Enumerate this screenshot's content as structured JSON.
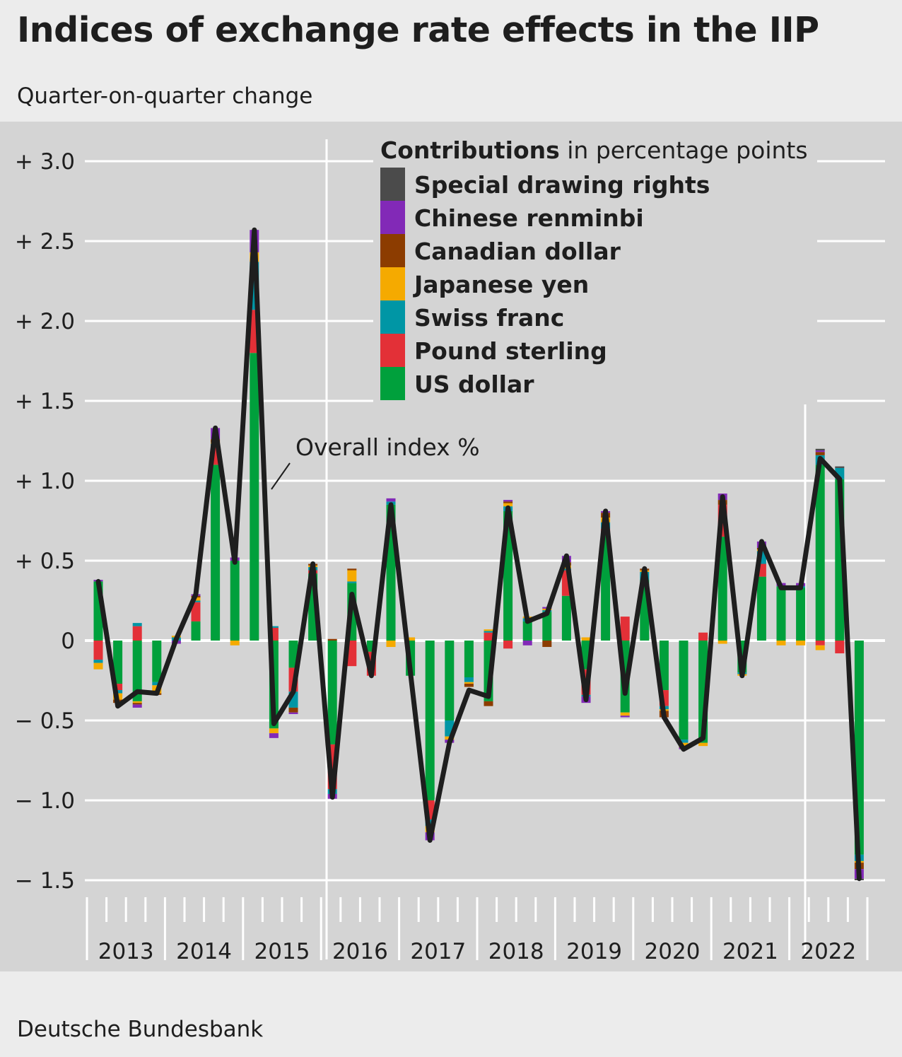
{
  "title": "Indices of exchange rate effects in the IIP",
  "subtitle": "Quarter-on-quarter change",
  "source": "Deutsche Bundesbank",
  "chart_data": {
    "type": "bar",
    "stacked": true,
    "overlay": "line",
    "legend_title_bold": "Contributions",
    "legend_title_rest": "in percentage points",
    "line_label": "Overall index %",
    "y_ticks": [
      3.0,
      2.5,
      2.0,
      1.5,
      1.0,
      0.5,
      0,
      -0.5,
      -1.0,
      -1.5
    ],
    "y_tick_labels": [
      "+ 3.0",
      "+ 2.5",
      "+ 2.0",
      "+ 1.5",
      "+ 1.0",
      "+ 0.5",
      "0",
      "− 0.5",
      "− 1.0",
      "− 1.5"
    ],
    "ylim": [
      -1.5,
      3.0
    ],
    "year_labels": [
      "2013",
      "2014",
      "2015",
      "2016",
      "2017",
      "2018",
      "2019",
      "2020",
      "2021",
      "2022"
    ],
    "quarters_per_year": 4,
    "series": [
      {
        "name": "US dollar",
        "color": "#00a03c",
        "values": [
          0.37,
          -0.27,
          -0.38,
          -0.26,
          0.0,
          0.12,
          1.1,
          0.5,
          1.8,
          -0.55,
          -0.17,
          0.42,
          -0.65,
          0.36,
          -0.07,
          0.85,
          -0.22,
          -1.0,
          -0.5,
          -0.23,
          -0.38,
          0.81,
          0.12,
          0.18,
          0.28,
          -0.18,
          0.66,
          -0.45,
          0.38,
          -0.31,
          -0.62,
          -0.64,
          0.65,
          -0.2,
          0.4,
          0.34,
          0.33,
          1.1,
          1.01,
          -1.34
        ]
      },
      {
        "name": "Pound sterling",
        "color": "#e33037",
        "values": [
          -0.12,
          -0.04,
          0.09,
          -0.0,
          0.0,
          0.12,
          0.12,
          0.0,
          0.27,
          0.08,
          -0.15,
          0.02,
          -0.28,
          -0.16,
          -0.15,
          0.0,
          0.0,
          -0.12,
          0.0,
          0.0,
          0.05,
          -0.05,
          0.0,
          0.0,
          0.16,
          -0.16,
          0.04,
          0.15,
          0.0,
          -0.1,
          0.0,
          0.05,
          0.2,
          0.0,
          0.08,
          0.0,
          0.0,
          -0.03,
          -0.08,
          0.0
        ]
      },
      {
        "name": "Swiss franc",
        "color": "#0096a5",
        "values": [
          -0.02,
          -0.02,
          0.02,
          -0.02,
          0.02,
          0.01,
          0.01,
          0.0,
          0.3,
          0.01,
          -0.1,
          0.02,
          -0.03,
          0.01,
          0.0,
          0.02,
          0.0,
          -0.04,
          -0.1,
          -0.03,
          0.01,
          0.03,
          0.02,
          0.01,
          0.01,
          -0.01,
          0.04,
          0.0,
          0.05,
          -0.02,
          -0.02,
          0.0,
          0.0,
          -0.01,
          0.08,
          0.0,
          0.01,
          0.06,
          0.07,
          -0.04
        ]
      },
      {
        "name": "Japanese yen",
        "color": "#f5aa00",
        "values": [
          -0.04,
          -0.04,
          -0.01,
          -0.05,
          0.01,
          0.02,
          0.01,
          -0.03,
          0.06,
          -0.03,
          0.0,
          0.01,
          0.0,
          0.07,
          0.0,
          -0.04,
          0.02,
          -0.04,
          -0.02,
          -0.01,
          0.01,
          0.02,
          0.01,
          0.01,
          0.02,
          0.02,
          0.03,
          -0.02,
          0.01,
          -0.01,
          -0.02,
          -0.02,
          -0.02,
          -0.01,
          0.01,
          -0.03,
          -0.03,
          -0.03,
          0.0,
          -0.01
        ]
      },
      {
        "name": "Canadian dollar",
        "color": "#8c3c00",
        "values": [
          0.0,
          -0.02,
          -0.01,
          -0.01,
          0.0,
          0.01,
          0.02,
          0.0,
          0.0,
          0.0,
          -0.03,
          0.01,
          0.01,
          0.01,
          0.0,
          0.0,
          0.0,
          0.0,
          0.0,
          -0.02,
          -0.03,
          0.01,
          0.0,
          -0.04,
          0.02,
          0.0,
          0.03,
          0.0,
          0.01,
          -0.04,
          -0.01,
          0.0,
          0.03,
          0.0,
          0.01,
          0.0,
          0.0,
          0.02,
          0.0,
          -0.04
        ]
      },
      {
        "name": "Chinese renminbi",
        "color": "#8229b7",
        "values": [
          0.01,
          0.0,
          -0.02,
          0.0,
          -0.02,
          0.01,
          0.07,
          0.02,
          0.14,
          -0.03,
          -0.01,
          0.0,
          -0.03,
          0.0,
          0.0,
          0.02,
          0.0,
          -0.05,
          -0.02,
          0.0,
          0.0,
          0.01,
          -0.03,
          0.01,
          0.04,
          -0.04,
          0.01,
          -0.01,
          0.0,
          0.0,
          -0.01,
          0.0,
          0.04,
          0.0,
          0.04,
          0.02,
          0.02,
          0.01,
          0.0,
          -0.06
        ]
      },
      {
        "name": "Special drawing rights",
        "color": "#4b4b4b",
        "values": [
          0.0,
          0.0,
          0.0,
          0.0,
          0.0,
          0.0,
          0.0,
          0.0,
          0.0,
          0.0,
          0.0,
          0.0,
          0.0,
          0.0,
          0.0,
          0.0,
          0.0,
          0.0,
          0.0,
          0.0,
          0.0,
          0.0,
          0.0,
          0.0,
          0.0,
          0.0,
          0.0,
          0.0,
          0.0,
          0.0,
          0.0,
          0.0,
          0.0,
          0.0,
          0.0,
          0.0,
          0.0,
          0.01,
          0.01,
          -0.01
        ]
      }
    ],
    "overall_index": [
      0.37,
      -0.41,
      -0.32,
      -0.33,
      0.01,
      0.29,
      1.33,
      0.49,
      2.57,
      -0.52,
      -0.32,
      0.48,
      -0.98,
      0.29,
      -0.22,
      0.85,
      -0.2,
      -1.25,
      -0.64,
      -0.31,
      -0.35,
      0.83,
      0.12,
      0.17,
      0.53,
      -0.37,
      0.81,
      -0.33,
      0.45,
      -0.48,
      -0.68,
      -0.61,
      0.9,
      -0.22,
      0.62,
      0.33,
      0.33,
      1.14,
      1.01,
      -1.49
    ]
  }
}
